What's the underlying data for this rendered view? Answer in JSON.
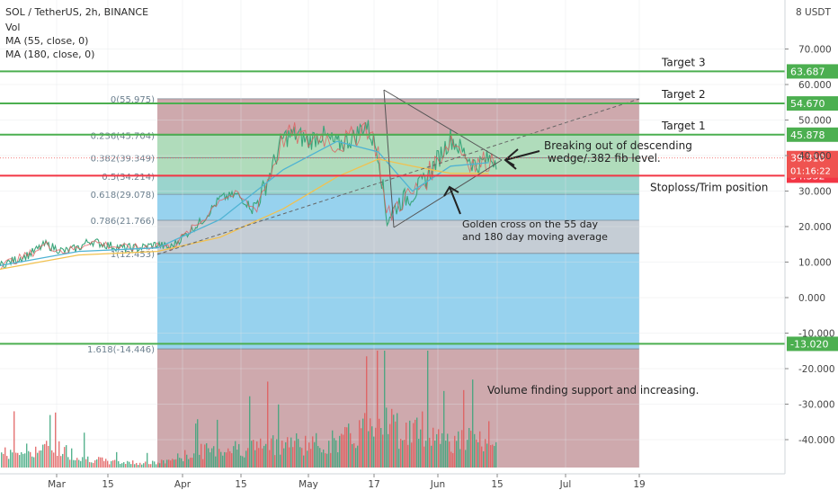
{
  "header": {
    "symbol": "SOL / TetherUS, 2h, BINANCE",
    "vol": "Vol",
    "ma1": "MA (55, close, 0)",
    "ma2": "MA (180, close, 0)"
  },
  "colors": {
    "target_line": "#4caf50",
    "stop_line": "#f23645",
    "price_current": "#ef5350",
    "fib_red": "#c9a0a4",
    "fib_green": "#a7d8b4",
    "fib_teal": "#8fcfc8",
    "fib_blue": "#8ccdec",
    "fib_grey": "#bfc8d0",
    "ma55": "#4fb3d3",
    "ma180": "#f2c14e",
    "candles_up": "#3aa57a",
    "candles_down": "#e05a5a"
  },
  "chart_data": {
    "type": "line",
    "title": "SOL / TetherUS, 2h, BINANCE",
    "y_axis_unit": "USDT",
    "y_ticks": [
      70.0,
      60.0,
      50.0,
      40.0,
      30.0,
      20.0,
      10.0,
      0.0,
      -10.0,
      -20.0,
      -30.0,
      -40.0
    ],
    "y_tick_labels": [
      "70.000",
      "60.000",
      "50.000",
      "40.000",
      "30.000",
      "20.000",
      "10.000",
      "0.000",
      "-10.000",
      "-20.000",
      "-30.000",
      "-40.000"
    ],
    "y_axis_top_label": "8 USDT",
    "x_tick_labels": [
      "Mar",
      "15",
      "Apr",
      "15",
      "May",
      "17",
      "Jun",
      "15",
      "Jul",
      "19"
    ],
    "x_tick_dates": [
      "2021-03-01",
      "2021-03-15",
      "2021-04-01",
      "2021-04-15",
      "2021-05-01",
      "2021-05-17",
      "2021-06-01",
      "2021-06-15",
      "2021-07-01",
      "2021-07-19"
    ],
    "ylim": [
      -55.5,
      88
    ],
    "price_series": {
      "name": "SOL / TetherUS",
      "x": [
        "2021-02-19",
        "2021-02-24",
        "2021-02-27",
        "2021-03-03",
        "2021-03-07",
        "2021-03-10",
        "2021-03-14",
        "2021-03-18",
        "2021-03-22",
        "2021-03-26",
        "2021-03-29",
        "2021-04-02",
        "2021-04-06",
        "2021-04-10",
        "2021-04-14",
        "2021-04-18",
        "2021-04-21",
        "2021-04-25",
        "2021-04-28",
        "2021-05-01",
        "2021-05-04",
        "2021-05-08",
        "2021-05-12",
        "2021-05-15",
        "2021-05-18",
        "2021-05-20",
        "2021-05-23",
        "2021-05-26",
        "2021-05-29",
        "2021-06-01",
        "2021-06-04",
        "2021-06-07",
        "2021-06-10",
        "2021-06-13"
      ],
      "y": [
        9,
        12,
        15,
        13,
        14,
        16,
        15,
        14,
        14,
        15,
        14,
        18,
        22,
        28,
        29,
        25,
        32,
        45,
        46,
        44,
        46,
        43,
        45,
        49,
        41,
        22,
        27,
        29,
        33,
        39,
        45,
        41,
        37,
        39
      ]
    },
    "moving_averages": [
      {
        "name": "MA (55, close, 0)",
        "x": [
          "2021-02-19",
          "2021-03-07",
          "2021-03-26",
          "2021-04-10",
          "2021-04-25",
          "2021-05-08",
          "2021-05-18",
          "2021-05-26",
          "2021-06-04",
          "2021-06-13"
        ],
        "y": [
          9,
          13,
          14,
          22,
          36,
          44,
          41,
          30,
          37,
          38
        ]
      },
      {
        "name": "MA (180, close, 0)",
        "x": [
          "2021-02-19",
          "2021-03-07",
          "2021-03-26",
          "2021-04-10",
          "2021-04-25",
          "2021-05-08",
          "2021-05-18",
          "2021-05-26",
          "2021-06-04",
          "2021-06-13"
        ],
        "y": [
          8,
          12,
          13,
          17,
          25,
          34,
          39,
          37,
          35,
          35
        ]
      }
    ],
    "fib_retracement": {
      "levels": [
        {
          "ratio": "0",
          "price": 55.975,
          "label": "0(55.975)"
        },
        {
          "ratio": "0.236",
          "price": 45.704,
          "label": "0.236(45.704)"
        },
        {
          "ratio": "0.382",
          "price": 39.349,
          "label": "0.382(39.349)"
        },
        {
          "ratio": "0.5",
          "price": 34.214,
          "label": "0.5(34.214)"
        },
        {
          "ratio": "0.618",
          "price": 29.078,
          "label": "0.618(29.078)"
        },
        {
          "ratio": "0.786",
          "price": 21.766,
          "label": "0.786(21.766)"
        },
        {
          "ratio": "1",
          "price": 12.453,
          "label": "1(12.453)"
        },
        {
          "ratio": "1.618",
          "price": -14.446,
          "label": "1.618(-14.446)"
        }
      ],
      "start_date": "2021-03-26",
      "end_date": "2021-07-19"
    },
    "horizontal_lines": [
      {
        "price": 63.687,
        "label": "63.687",
        "annotation": "Target 3",
        "kind": "target"
      },
      {
        "price": 54.67,
        "label": "54.670",
        "annotation": "Target 2",
        "kind": "target"
      },
      {
        "price": 45.878,
        "label": "45.878",
        "annotation": "Target 1",
        "kind": "target"
      },
      {
        "price": 34.332,
        "label": "34.332",
        "annotation": "Stoploss/Trim position",
        "kind": "stop"
      },
      {
        "price": -13.02,
        "label": "-13.020",
        "annotation": "",
        "kind": "target"
      }
    ],
    "current_price": {
      "price": 39.31,
      "label": "39.310",
      "countdown": "01:16:22"
    },
    "annotations": [
      {
        "text_lines": [
          "Breaking out of descending",
          "wedge/.382 fib level."
        ]
      },
      {
        "text_lines": [
          "Golden cross on the 55 day",
          "and 180 day moving average"
        ]
      },
      {
        "text_lines": [
          "Volume finding support and increasing."
        ]
      }
    ],
    "volume_series": {
      "name": "Vol",
      "x": [
        "2021-02-19",
        "2021-03-01",
        "2021-03-07",
        "2021-03-15",
        "2021-03-26",
        "2021-04-06",
        "2021-04-15",
        "2021-04-25",
        "2021-05-04",
        "2021-05-12",
        "2021-05-17",
        "2021-05-19",
        "2021-05-23",
        "2021-05-29",
        "2021-06-04",
        "2021-06-10",
        "2021-06-13"
      ],
      "relative": [
        0.25,
        0.35,
        0.2,
        0.1,
        0.08,
        0.3,
        0.35,
        0.45,
        0.4,
        0.55,
        0.9,
        1.0,
        0.6,
        0.7,
        0.45,
        0.5,
        0.3
      ]
    }
  }
}
